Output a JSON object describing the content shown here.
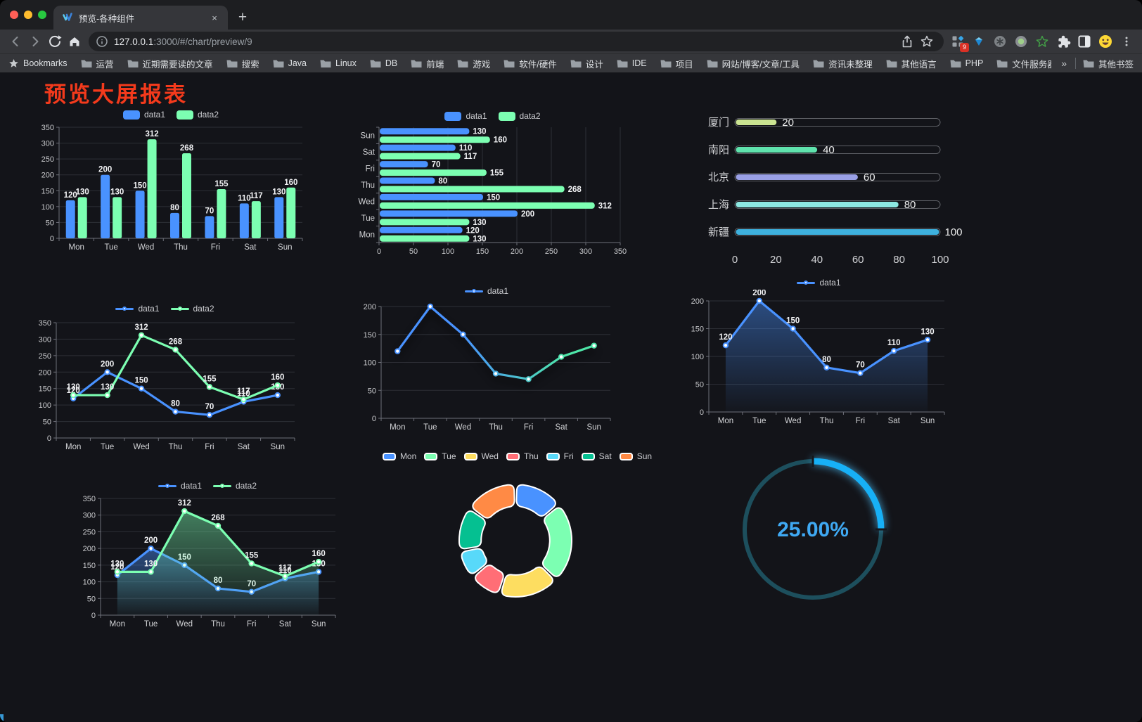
{
  "browser": {
    "tab_title": "预览-各种组件",
    "url_host": "127.0.0.1",
    "url_rest": ":3000/#/chart/preview/9",
    "new_tab_label": "+",
    "close_tab_label": "×",
    "extension_badge": "9",
    "bookmarks_label": "Bookmarks",
    "bookmarks": [
      "运营",
      "近期需要读的文章",
      "搜索",
      "Java",
      "Linux",
      "DB",
      "前端",
      "游戏",
      "软件/硬件",
      "设计",
      "IDE",
      "项目",
      "网站/博客/文章/工具",
      "资讯未整理",
      "其他语言",
      "PHP",
      "文件服务器"
    ],
    "overflow_chevron": "»",
    "other_bookmarks": "其他书签"
  },
  "page": {
    "title": "预览大屏报表",
    "title_color": "#f43a1c",
    "background": "#131419"
  },
  "chart_data": [
    {
      "id": "grouped-bar",
      "type": "bar",
      "orientation": "vertical",
      "categories": [
        "Mon",
        "Tue",
        "Wed",
        "Thu",
        "Fri",
        "Sat",
        "Sun"
      ],
      "series": [
        {
          "name": "data1",
          "color": "#4992ff",
          "values": [
            120,
            200,
            150,
            80,
            70,
            110,
            130
          ]
        },
        {
          "name": "data2",
          "color": "#7cffb2",
          "values": [
            130,
            130,
            312,
            268,
            155,
            117,
            160
          ]
        }
      ],
      "ylim": [
        0,
        350
      ],
      "ytick_step": 50,
      "grid": true,
      "legend_position": "top",
      "value_labels": true
    },
    {
      "id": "horizontal-bar",
      "type": "bar",
      "orientation": "horizontal",
      "categories": [
        "Mon",
        "Tue",
        "Wed",
        "Thu",
        "Fri",
        "Sat",
        "Sun"
      ],
      "series": [
        {
          "name": "data1",
          "color": "#4992ff",
          "values": [
            120,
            200,
            150,
            80,
            70,
            110,
            130
          ]
        },
        {
          "name": "data2",
          "color": "#7cffb2",
          "values": [
            130,
            130,
            312,
            268,
            155,
            117,
            160
          ]
        }
      ],
      "xlim": [
        0,
        350
      ],
      "xtick_step": 50,
      "grid": true,
      "legend_position": "top",
      "value_labels": true
    },
    {
      "id": "city-progress",
      "type": "bar",
      "orientation": "progress",
      "items": [
        {
          "label": "厦门",
          "value": 20,
          "color": "#cbe492"
        },
        {
          "label": "南阳",
          "value": 40,
          "color": "#5fe3ad"
        },
        {
          "label": "北京",
          "value": 60,
          "color": "#9aa0e6"
        },
        {
          "label": "上海",
          "value": 80,
          "color": "#8ce8e2"
        },
        {
          "label": "新疆",
          "value": 100,
          "color": "#3eb1de"
        }
      ],
      "xlim": [
        0,
        100
      ],
      "xticks": [
        0,
        20,
        40,
        60,
        80,
        100
      ]
    },
    {
      "id": "two-line",
      "type": "line",
      "categories": [
        "Mon",
        "Tue",
        "Wed",
        "Thu",
        "Fri",
        "Sat",
        "Sun"
      ],
      "series": [
        {
          "name": "data1",
          "color": "#4992ff",
          "values": [
            120,
            200,
            150,
            80,
            70,
            110,
            130
          ]
        },
        {
          "name": "data2",
          "color": "#7cffb2",
          "values": [
            130,
            130,
            312,
            268,
            155,
            117,
            160
          ]
        }
      ],
      "ylim": [
        0,
        350
      ],
      "ytick_step": 50,
      "grid": true,
      "legend_position": "top",
      "value_labels": true,
      "markers": true
    },
    {
      "id": "gradient-line",
      "type": "line",
      "categories": [
        "Mon",
        "Tue",
        "Wed",
        "Thu",
        "Fri",
        "Sat",
        "Sun"
      ],
      "series": [
        {
          "name": "data1",
          "color": "#4992ff",
          "color_gradient": [
            "#4992ff",
            "#4ee6a9"
          ],
          "values": [
            120,
            200,
            150,
            80,
            70,
            110,
            130
          ]
        }
      ],
      "ylim": [
        0,
        200
      ],
      "ytick_step": 50,
      "grid": true,
      "legend_position": "top",
      "value_labels": false,
      "markers": true
    },
    {
      "id": "single-area",
      "type": "area",
      "categories": [
        "Mon",
        "Tue",
        "Wed",
        "Thu",
        "Fri",
        "Sat",
        "Sun"
      ],
      "series": [
        {
          "name": "data1",
          "color": "#4992ff",
          "values": [
            120,
            200,
            150,
            80,
            70,
            110,
            130
          ]
        }
      ],
      "ylim": [
        0,
        200
      ],
      "ytick_step": 50,
      "grid": true,
      "legend_position": "top",
      "value_labels": true,
      "markers": true
    },
    {
      "id": "two-area",
      "type": "area",
      "categories": [
        "Mon",
        "Tue",
        "Wed",
        "Thu",
        "Fri",
        "Sat",
        "Sun"
      ],
      "series": [
        {
          "name": "data1",
          "color": "#4992ff",
          "values": [
            120,
            200,
            150,
            80,
            70,
            110,
            130
          ]
        },
        {
          "name": "data2",
          "color": "#7cffb2",
          "values": [
            130,
            130,
            312,
            268,
            155,
            117,
            160
          ]
        }
      ],
      "ylim": [
        0,
        350
      ],
      "ytick_step": 50,
      "grid": true,
      "legend_position": "top",
      "value_labels": true,
      "markers": true
    },
    {
      "id": "donut",
      "type": "pie",
      "categories": [
        "Mon",
        "Tue",
        "Wed",
        "Thu",
        "Fri",
        "Sat",
        "Sun"
      ],
      "values": [
        120,
        200,
        150,
        80,
        70,
        110,
        130
      ],
      "colors": [
        "#4992ff",
        "#7cffb2",
        "#fddd60",
        "#ff6e76",
        "#58d9f9",
        "#05c091",
        "#ff8a45"
      ],
      "inner_radius_ratio": 0.61,
      "legend_position": "top",
      "segment_border_color": "#ffffff"
    },
    {
      "id": "gauge",
      "type": "gauge",
      "value": 25,
      "max": 100,
      "label": "25.00%",
      "color": "#17b0f6",
      "track_color": "#1d4f5d",
      "text_color": "#3fa9f3"
    }
  ]
}
